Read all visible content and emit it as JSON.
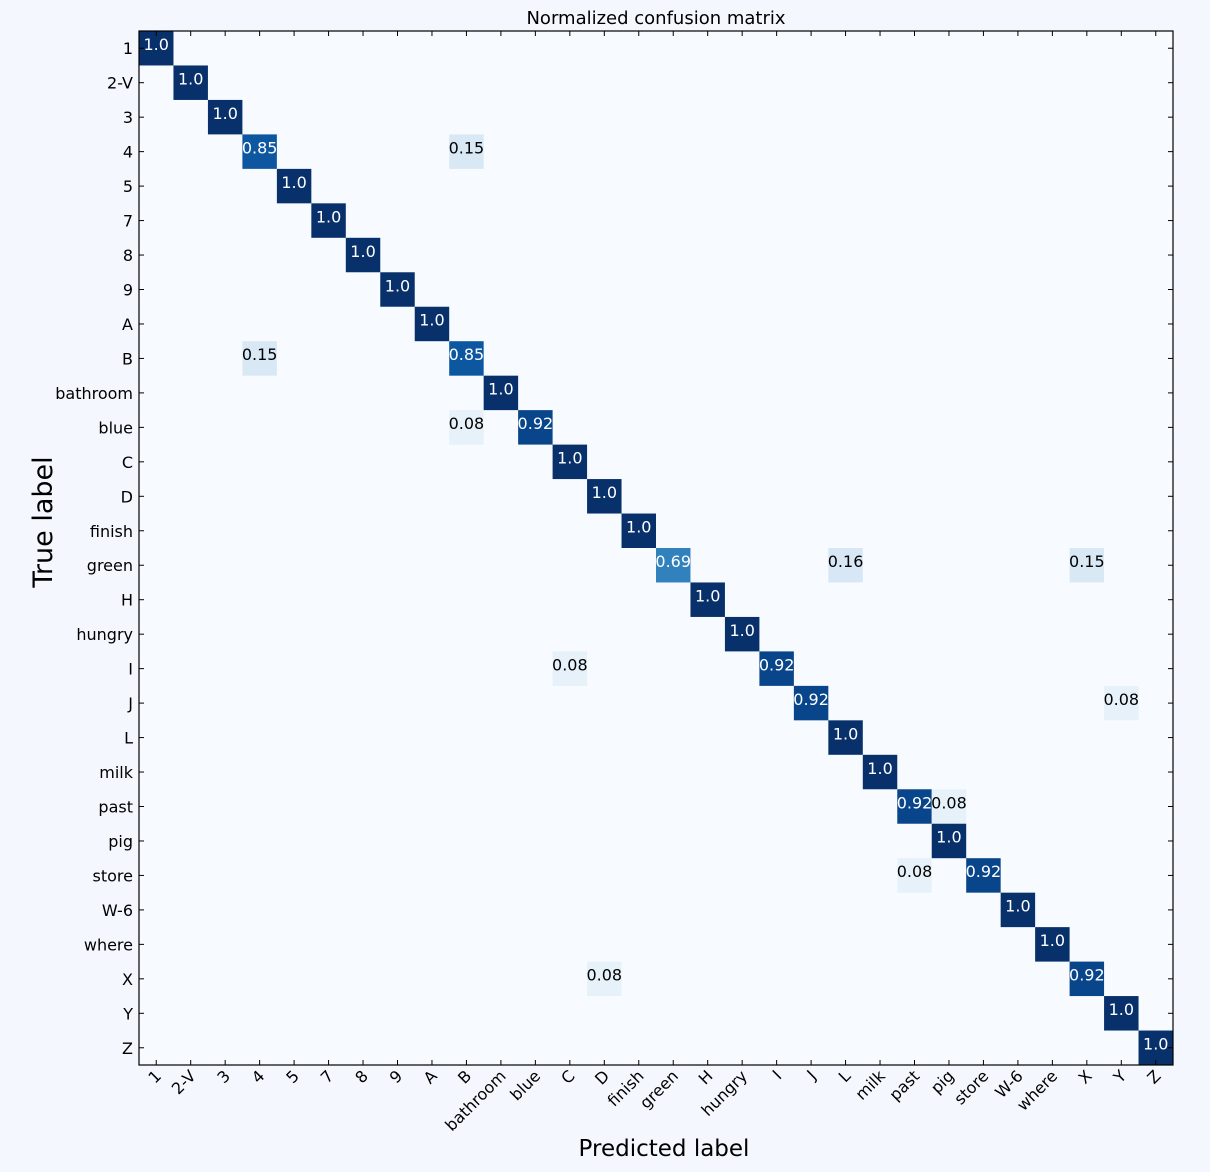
{
  "chart_data": {
    "type": "heatmap",
    "title": "Normalized confusion matrix",
    "xlabel": "Predicted label",
    "ylabel": "True label",
    "labels": [
      "1",
      "2-V",
      "3",
      "4",
      "5",
      "7",
      "8",
      "9",
      "A",
      "B",
      "bathroom",
      "blue",
      "C",
      "D",
      "finish",
      "green",
      "H",
      "hungry",
      "I",
      "J",
      "L",
      "milk",
      "past",
      "pig",
      "store",
      "W-6",
      "where",
      "X",
      "Y",
      "Z"
    ],
    "colormap": "Blues",
    "value_range": [
      0,
      1
    ],
    "cells": [
      {
        "true": "1",
        "pred": "1",
        "value": 1.0,
        "text": "1.0"
      },
      {
        "true": "2-V",
        "pred": "2-V",
        "value": 1.0,
        "text": "1.0"
      },
      {
        "true": "3",
        "pred": "3",
        "value": 1.0,
        "text": "1.0"
      },
      {
        "true": "4",
        "pred": "4",
        "value": 0.85,
        "text": "0.85"
      },
      {
        "true": "4",
        "pred": "B",
        "value": 0.15,
        "text": "0.15"
      },
      {
        "true": "5",
        "pred": "5",
        "value": 1.0,
        "text": "1.0"
      },
      {
        "true": "7",
        "pred": "7",
        "value": 1.0,
        "text": "1.0"
      },
      {
        "true": "8",
        "pred": "8",
        "value": 1.0,
        "text": "1.0"
      },
      {
        "true": "9",
        "pred": "9",
        "value": 1.0,
        "text": "1.0"
      },
      {
        "true": "A",
        "pred": "A",
        "value": 1.0,
        "text": "1.0"
      },
      {
        "true": "B",
        "pred": "4",
        "value": 0.15,
        "text": "0.15"
      },
      {
        "true": "B",
        "pred": "B",
        "value": 0.85,
        "text": "0.85"
      },
      {
        "true": "bathroom",
        "pred": "bathroom",
        "value": 1.0,
        "text": "1.0"
      },
      {
        "true": "blue",
        "pred": "B",
        "value": 0.08,
        "text": "0.08"
      },
      {
        "true": "blue",
        "pred": "blue",
        "value": 0.92,
        "text": "0.92"
      },
      {
        "true": "C",
        "pred": "C",
        "value": 1.0,
        "text": "1.0"
      },
      {
        "true": "D",
        "pred": "D",
        "value": 1.0,
        "text": "1.0"
      },
      {
        "true": "finish",
        "pred": "finish",
        "value": 1.0,
        "text": "1.0"
      },
      {
        "true": "green",
        "pred": "green",
        "value": 0.69,
        "text": "0.69"
      },
      {
        "true": "green",
        "pred": "L",
        "value": 0.16,
        "text": "0.16"
      },
      {
        "true": "green",
        "pred": "X",
        "value": 0.15,
        "text": "0.15"
      },
      {
        "true": "H",
        "pred": "H",
        "value": 1.0,
        "text": "1.0"
      },
      {
        "true": "hungry",
        "pred": "hungry",
        "value": 1.0,
        "text": "1.0"
      },
      {
        "true": "I",
        "pred": "C",
        "value": 0.08,
        "text": "0.08"
      },
      {
        "true": "I",
        "pred": "I",
        "value": 0.92,
        "text": "0.92"
      },
      {
        "true": "J",
        "pred": "J",
        "value": 0.92,
        "text": "0.92"
      },
      {
        "true": "J",
        "pred": "Y",
        "value": 0.08,
        "text": "0.08"
      },
      {
        "true": "L",
        "pred": "L",
        "value": 1.0,
        "text": "1.0"
      },
      {
        "true": "milk",
        "pred": "milk",
        "value": 1.0,
        "text": "1.0"
      },
      {
        "true": "past",
        "pred": "past",
        "value": 0.92,
        "text": "0.92"
      },
      {
        "true": "past",
        "pred": "pig",
        "value": 0.08,
        "text": "0.08"
      },
      {
        "true": "pig",
        "pred": "pig",
        "value": 1.0,
        "text": "1.0"
      },
      {
        "true": "store",
        "pred": "past",
        "value": 0.08,
        "text": "0.08"
      },
      {
        "true": "store",
        "pred": "store",
        "value": 0.92,
        "text": "0.92"
      },
      {
        "true": "W-6",
        "pred": "W-6",
        "value": 1.0,
        "text": "1.0"
      },
      {
        "true": "where",
        "pred": "where",
        "value": 1.0,
        "text": "1.0"
      },
      {
        "true": "X",
        "pred": "D",
        "value": 0.08,
        "text": "0.08"
      },
      {
        "true": "X",
        "pred": "X",
        "value": 0.92,
        "text": "0.92"
      },
      {
        "true": "Y",
        "pred": "Y",
        "value": 1.0,
        "text": "1.0"
      },
      {
        "true": "Z",
        "pred": "Z",
        "value": 1.0,
        "text": "1.0"
      }
    ]
  }
}
